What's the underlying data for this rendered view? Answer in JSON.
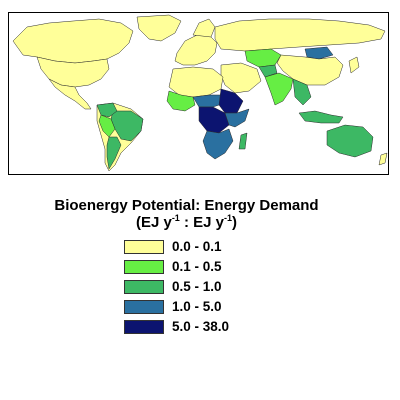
{
  "legend": {
    "title_line1": "Bioenergy Potential: Energy Demand",
    "title_line2_parts": [
      "(EJ y",
      "-1",
      " : EJ y",
      "-1",
      ")"
    ],
    "classes": [
      {
        "label": "0.0 - 0.1",
        "color": "#ffff99"
      },
      {
        "label": "0.1 - 0.5",
        "color": "#66ee44"
      },
      {
        "label": "0.5 - 1.0",
        "color": "#3db864"
      },
      {
        "label": "1.0 - 5.0",
        "color": "#2a70a0"
      },
      {
        "label": "5.0 - 38.0",
        "color": "#0c1470"
      }
    ]
  },
  "map": {
    "ocean_color": "#ffffff",
    "border_color": "#2b2b2b"
  }
}
